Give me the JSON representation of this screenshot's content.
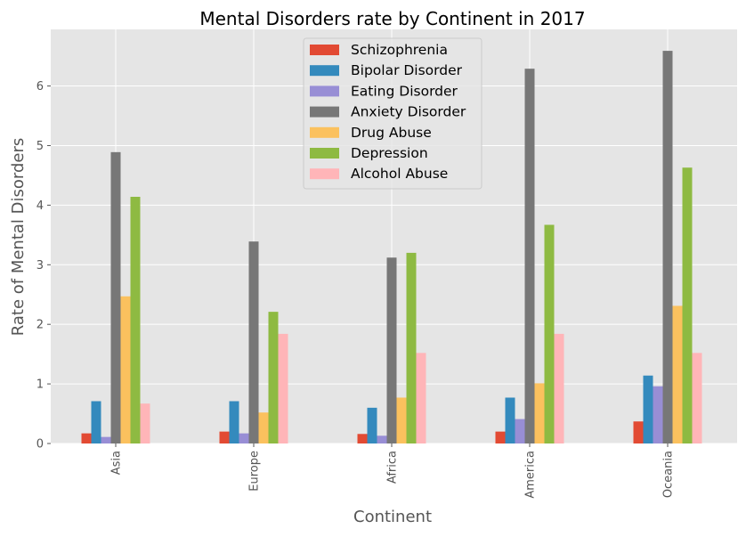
{
  "chart_data": {
    "type": "bar",
    "title": "Mental Disorders rate by Continent in 2017",
    "xlabel": "Continent",
    "ylabel": "Rate of Mental Disorders",
    "ylim": [
      0,
      6.95
    ],
    "yticks": [
      "0",
      "1",
      "2",
      "3",
      "4",
      "5",
      "6"
    ],
    "grid": true,
    "legend_position": "top-center",
    "categories": [
      "Asia",
      "Europe",
      "Africa",
      "America",
      "Oceania"
    ],
    "series": [
      {
        "name": "Schizophrenia",
        "color": "#E24A33",
        "values": [
          0.17,
          0.2,
          0.16,
          0.2,
          0.37
        ]
      },
      {
        "name": "Bipolar Disorder",
        "color": "#348ABD",
        "values": [
          0.71,
          0.71,
          0.6,
          0.77,
          1.14
        ]
      },
      {
        "name": "Eating Disorder",
        "color": "#988ED5",
        "values": [
          0.11,
          0.17,
          0.13,
          0.41,
          0.96
        ]
      },
      {
        "name": "Anxiety Disorder",
        "color": "#777777",
        "values": [
          4.89,
          3.39,
          3.12,
          6.29,
          6.59
        ]
      },
      {
        "name": "Drug Abuse",
        "color": "#FBC15E",
        "values": [
          2.47,
          0.52,
          0.77,
          1.01,
          2.31
        ]
      },
      {
        "name": "Depression",
        "color": "#8EBA42",
        "values": [
          4.14,
          2.21,
          3.2,
          3.67,
          4.63
        ]
      },
      {
        "name": "Alcohol Abuse",
        "color": "#FFB5B8",
        "values": [
          0.67,
          1.84,
          1.52,
          1.84,
          1.52
        ]
      }
    ],
    "colors": {
      "plot_background": "#E5E5E5",
      "grid": "#FFFFFF",
      "tick_text": "#555555"
    }
  }
}
